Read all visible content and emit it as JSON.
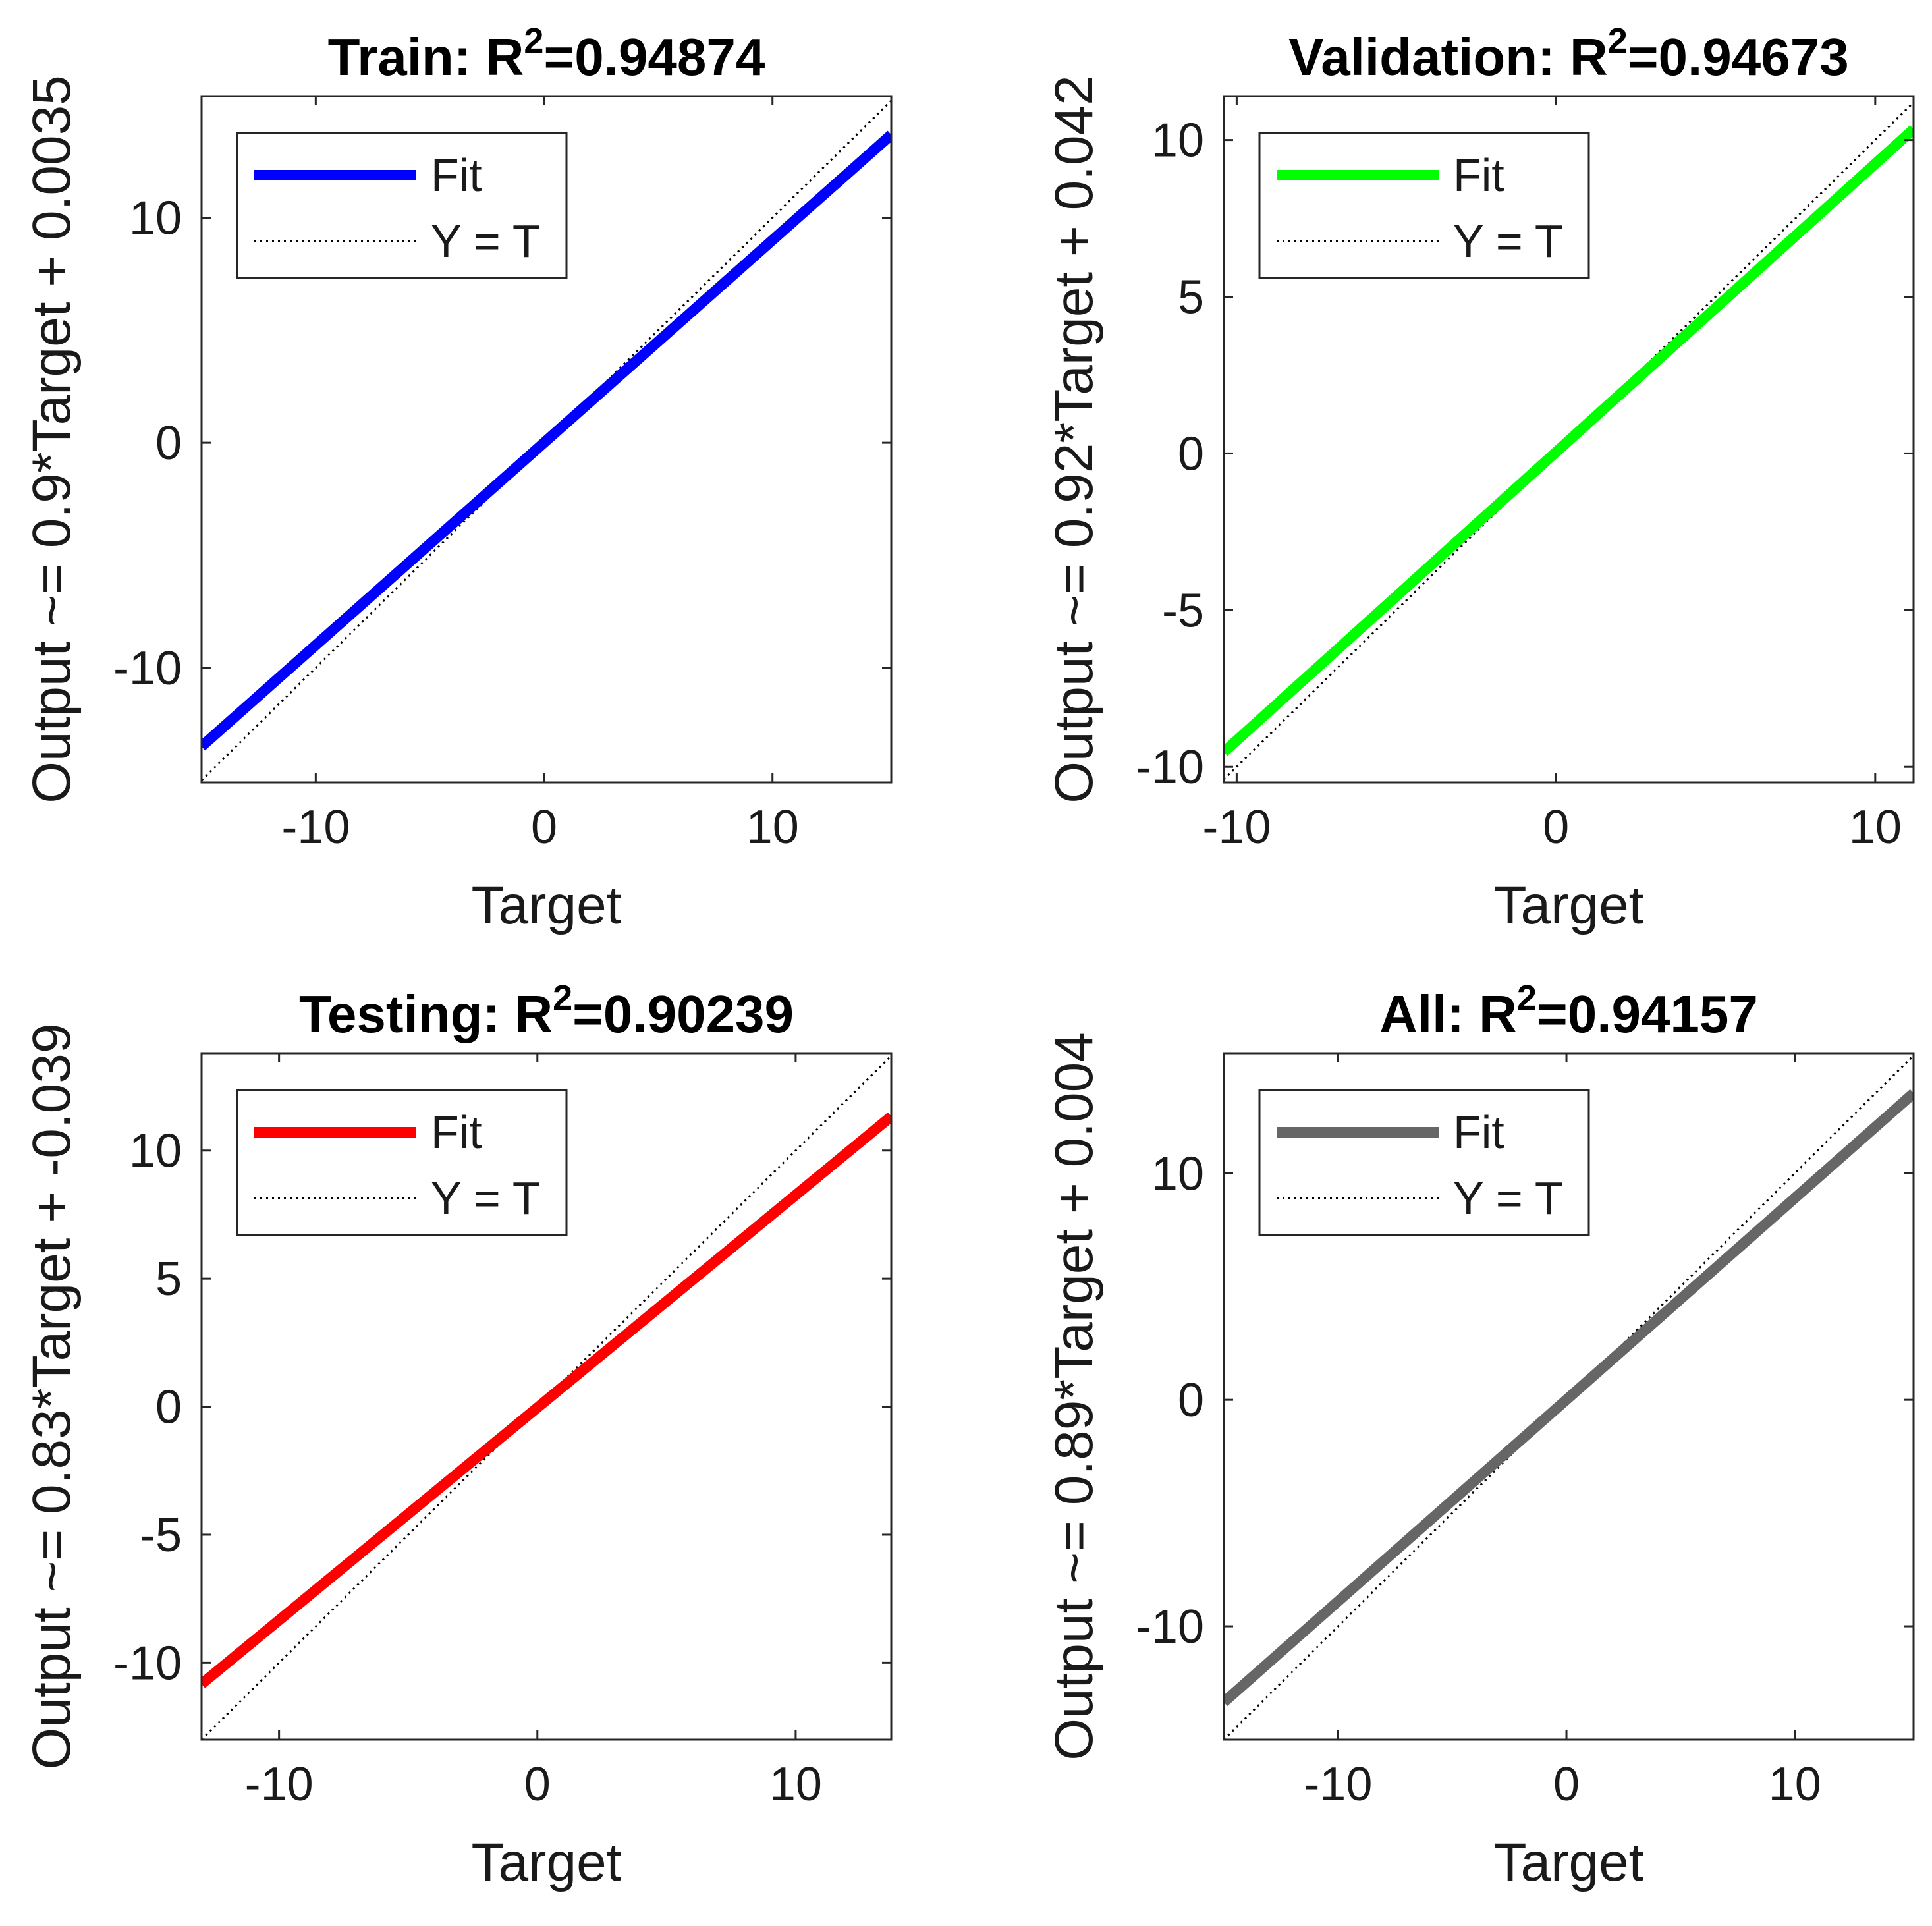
{
  "chart_data": [
    {
      "type": "line",
      "title": "Train: R",
      "title_sup": "2",
      "title_value": "=0.94874",
      "xlabel": "Target",
      "ylabel": "Output ~= 0.9*Target + 0.0035",
      "xlim": [
        -15,
        15.2
      ],
      "ylim": [
        -15.1,
        15.4
      ],
      "xticks": [
        -10,
        0,
        10
      ],
      "xtick_labels": [
        "-10",
        "0",
        "10"
      ],
      "yticks": [
        -10,
        0,
        10
      ],
      "ytick_labels": [
        "-10",
        "0",
        "10"
      ],
      "fit": {
        "slope": 0.9,
        "intercept": 0.0035,
        "color": "#0000ff"
      },
      "legend": [
        "Fit",
        "Y = T"
      ]
    },
    {
      "type": "line",
      "title": "Validation: R",
      "title_sup": "2",
      "title_value": "=0.94673",
      "xlabel": "Target",
      "ylabel": "Output ~= 0.92*Target + 0.042",
      "xlim": [
        -10.4,
        11.2
      ],
      "ylim": [
        -10.5,
        11.4
      ],
      "xticks": [
        -10,
        0,
        10
      ],
      "xtick_labels": [
        "-10",
        "0",
        "10"
      ],
      "yticks": [
        -10,
        -5,
        0,
        5,
        10
      ],
      "ytick_labels": [
        "-10",
        "-5",
        "0",
        "5",
        "10"
      ],
      "fit": {
        "slope": 0.92,
        "intercept": 0.042,
        "color": "#00ff00"
      },
      "legend": [
        "Fit",
        "Y = T"
      ]
    },
    {
      "type": "line",
      "title": "Testing: R",
      "title_sup": "2",
      "title_value": "=0.90239",
      "xlabel": "Target",
      "ylabel": "Output ~= 0.83*Target + -0.039",
      "xlim": [
        -13,
        13.7
      ],
      "ylim": [
        -13,
        13.8
      ],
      "xticks": [
        -10,
        0,
        10
      ],
      "xtick_labels": [
        "-10",
        "0",
        "10"
      ],
      "yticks": [
        -10,
        -5,
        0,
        5,
        10
      ],
      "ytick_labels": [
        "-10",
        "-5",
        "0",
        "5",
        "10"
      ],
      "fit": {
        "slope": 0.83,
        "intercept": -0.039,
        "color": "#ff0000"
      },
      "legend": [
        "Fit",
        "Y = T"
      ]
    },
    {
      "type": "line",
      "title": "All: R",
      "title_sup": "2",
      "title_value": "=0.94157",
      "xlabel": "Target",
      "ylabel": "Output ~= 0.89*Target + 0.004",
      "xlim": [
        -15,
        15.2
      ],
      "ylim": [
        -15,
        15.3
      ],
      "xticks": [
        -10,
        0,
        10
      ],
      "xtick_labels": [
        "-10",
        "0",
        "10"
      ],
      "yticks": [
        -10,
        0,
        10
      ],
      "ytick_labels": [
        "-10",
        "0",
        "10"
      ],
      "fit": {
        "slope": 0.89,
        "intercept": 0.004,
        "color": "#666666"
      },
      "legend": [
        "Fit",
        "Y = T"
      ]
    }
  ]
}
